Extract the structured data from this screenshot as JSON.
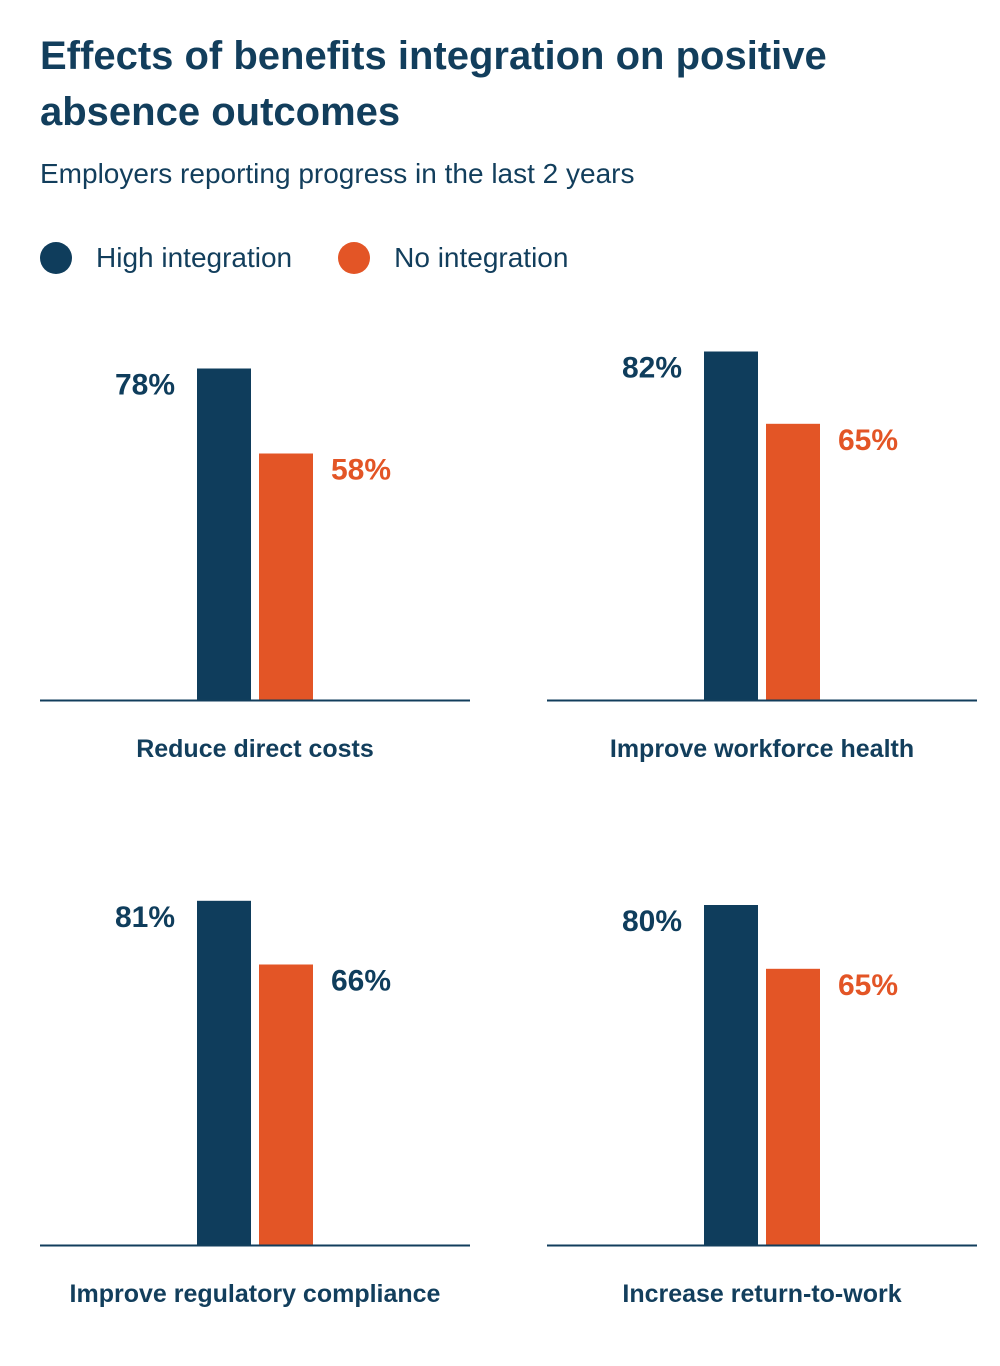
{
  "title": "Effects of benefits integration on positive absence outcomes",
  "subtitle": "Employers reporting progress in the last 2 years",
  "legend": [
    {
      "label": "High integration",
      "color": "#0f3d5c"
    },
    {
      "label": "No integration",
      "color": "#e35526"
    }
  ],
  "chart_data": [
    {
      "type": "bar",
      "title": "Reduce direct costs",
      "categories": [
        "Reduce direct costs"
      ],
      "series": [
        {
          "name": "High integration",
          "values": [
            78
          ],
          "labels": [
            "78%"
          ],
          "color": "#0f3d5c"
        },
        {
          "name": "No integration",
          "values": [
            58
          ],
          "labels": [
            "58%"
          ],
          "color": "#e35526"
        }
      ],
      "ylim": [
        0,
        100
      ]
    },
    {
      "type": "bar",
      "title": "Improve workforce health",
      "categories": [
        "Improve workforce health"
      ],
      "series": [
        {
          "name": "High integration",
          "values": [
            82
          ],
          "labels": [
            "82%"
          ],
          "color": "#0f3d5c"
        },
        {
          "name": "No integration",
          "values": [
            65
          ],
          "labels": [
            "65%"
          ],
          "color": "#e35526"
        }
      ],
      "ylim": [
        0,
        100
      ]
    },
    {
      "type": "bar",
      "title": "Improve regulatory compliance",
      "categories": [
        "Improve regulatory compliance"
      ],
      "series": [
        {
          "name": "High integration",
          "values": [
            81
          ],
          "labels": [
            "81%"
          ],
          "color": "#0f3d5c"
        },
        {
          "name": "No integration",
          "values": [
            66
          ],
          "labels": [
            "66%"
          ],
          "color": "#e35526"
        }
      ],
      "label_colors": [
        "#0f3d5c",
        "#0f3d5c"
      ],
      "ylim": [
        0,
        100
      ]
    },
    {
      "type": "bar",
      "title": "Increase return-to-work",
      "categories": [
        "Increase return-to-work"
      ],
      "series": [
        {
          "name": "High integration",
          "values": [
            80
          ],
          "labels": [
            "80%"
          ],
          "color": "#0f3d5c"
        },
        {
          "name": "No integration",
          "values": [
            65
          ],
          "labels": [
            "65%"
          ],
          "color": "#e35526"
        }
      ],
      "ylim": [
        0,
        100
      ]
    }
  ]
}
